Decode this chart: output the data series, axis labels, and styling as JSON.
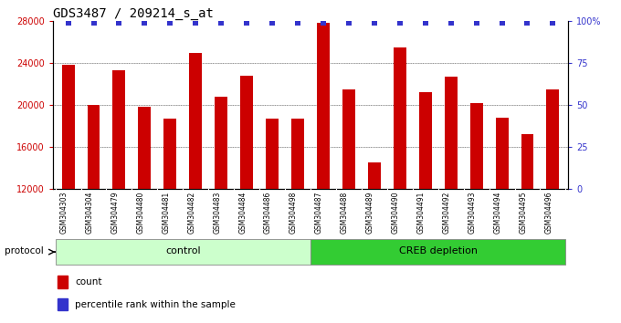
{
  "title": "GDS3487 / 209214_s_at",
  "samples": [
    "GSM304303",
    "GSM304304",
    "GSM304479",
    "GSM304480",
    "GSM304481",
    "GSM304482",
    "GSM304483",
    "GSM304484",
    "GSM304486",
    "GSM304498",
    "GSM304487",
    "GSM304488",
    "GSM304489",
    "GSM304490",
    "GSM304491",
    "GSM304492",
    "GSM304493",
    "GSM304494",
    "GSM304495",
    "GSM304496"
  ],
  "counts": [
    23800,
    20000,
    23300,
    19800,
    18700,
    25000,
    20800,
    22800,
    18700,
    18700,
    27800,
    21500,
    14500,
    25500,
    21200,
    22700,
    20200,
    18800,
    17200,
    21500
  ],
  "percentile_ranks": [
    99,
    99,
    99,
    99,
    99,
    99,
    99,
    99,
    99,
    99,
    99,
    99,
    99,
    99,
    99,
    99,
    99,
    99,
    99,
    99
  ],
  "control_count": 10,
  "creb_depletion_count": 10,
  "bar_color": "#CC0000",
  "dot_color": "#3333CC",
  "ylim_left": [
    12000,
    28000
  ],
  "ylim_right": [
    0,
    100
  ],
  "yticks_left": [
    12000,
    16000,
    20000,
    24000,
    28000
  ],
  "yticks_right": [
    0,
    25,
    50,
    75,
    100
  ],
  "yticklabels_right": [
    "0",
    "25",
    "50",
    "75",
    "100%"
  ],
  "control_color": "#CCFFCC",
  "creb_color": "#33CC33",
  "protocol_label": "protocol",
  "control_label": "control",
  "creb_label": "CREB depletion",
  "legend_count_label": "count",
  "legend_pct_label": "percentile rank within the sample",
  "xtick_bg_color": "#D8D8D8",
  "title_fontsize": 10,
  "tick_fontsize": 7,
  "bar_label_fontsize": 5.5,
  "proto_fontsize": 7.5,
  "legend_fontsize": 7.5,
  "axis_label_color_left": "#CC0000",
  "axis_label_color_right": "#3333CC",
  "grid_yticks": [
    16000,
    20000,
    24000
  ]
}
